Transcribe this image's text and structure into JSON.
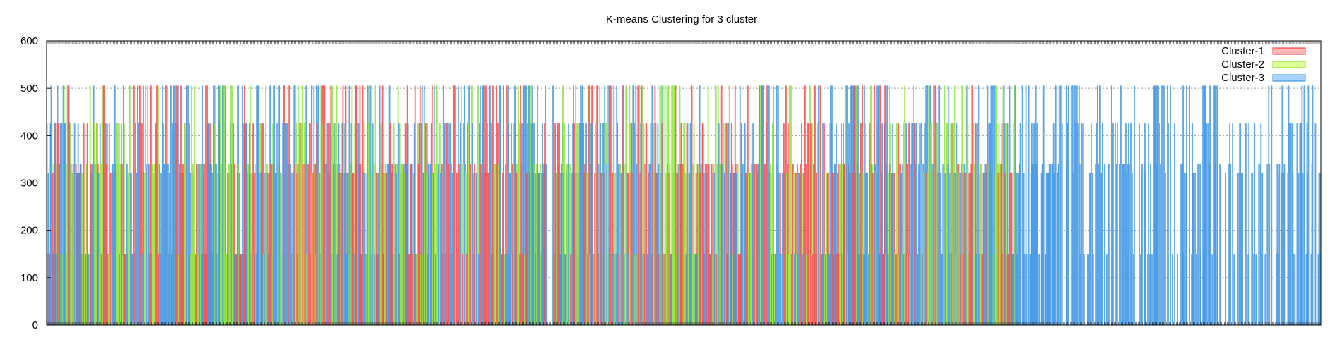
{
  "chart_data": {
    "type": "bar",
    "title": "K-means Clustering for 3 cluster",
    "xlabel": "",
    "ylabel": "",
    "ylim": [
      0,
      600
    ],
    "yticks": [
      0,
      100,
      200,
      300,
      400,
      500,
      600
    ],
    "grid": true,
    "legend_position": "top-right",
    "x_category_count": 1800,
    "series": [
      {
        "name": "Cluster-1",
        "color": "#ff2a2a",
        "fill": "#ffb8b8"
      },
      {
        "name": "Cluster-2",
        "color": "#77dd22",
        "fill": "#ddff99"
      },
      {
        "name": "Cluster-3",
        "color": "#2a88dd",
        "fill": "#a8d4ff"
      }
    ],
    "value_levels": [
      505,
      425,
      340,
      320,
      148
    ],
    "note_values": "Dense interleaved bars of three clusters with heights concentrated at about 505, 425, 340, 320 and 148; the last segment contains only Cluster-3."
  }
}
